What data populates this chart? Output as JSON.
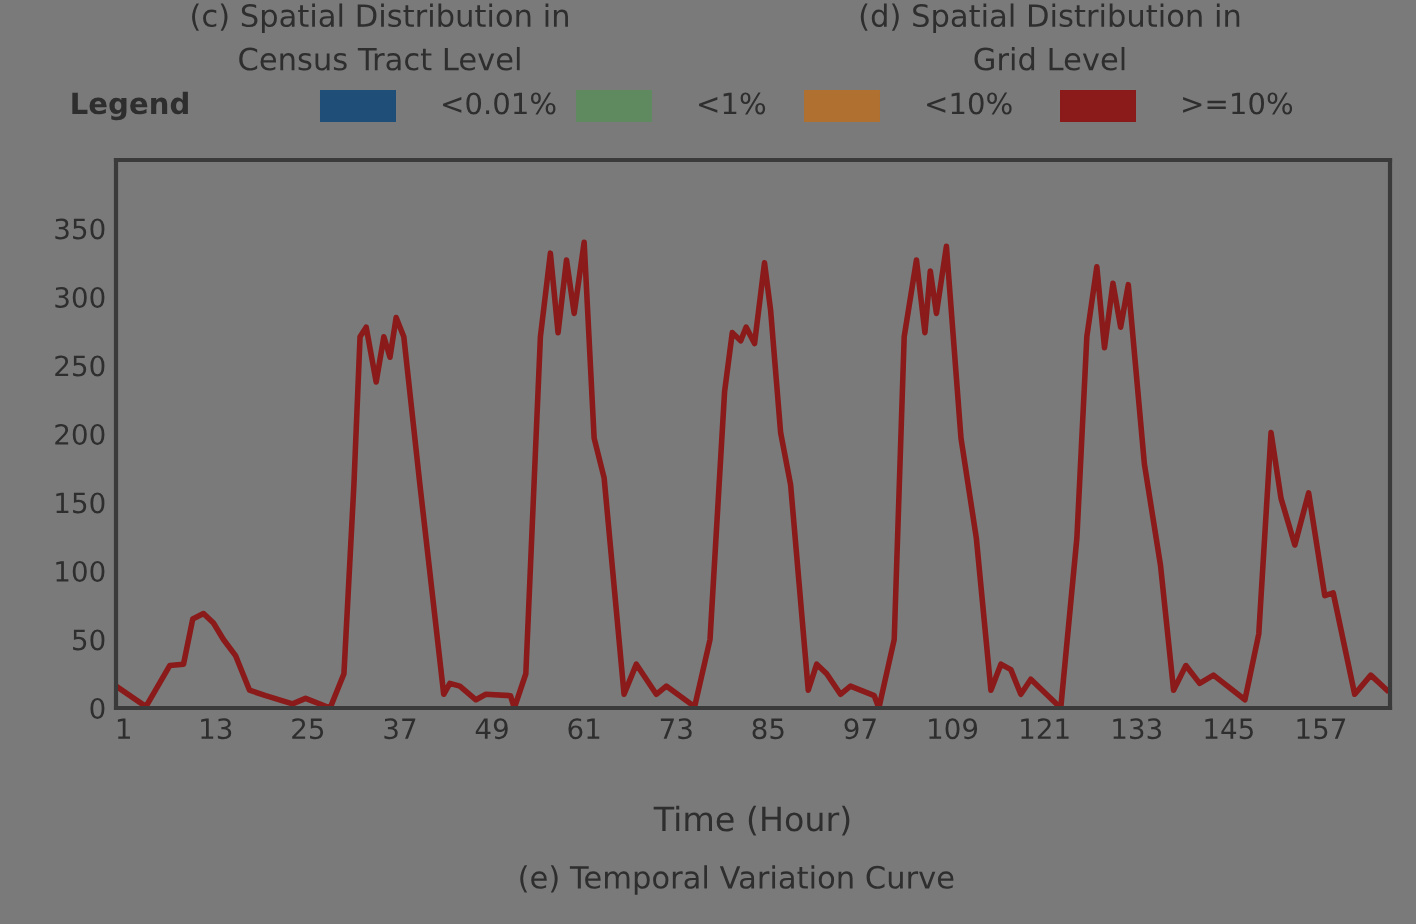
{
  "chart_data": {
    "type": "line",
    "title": "(e) Temporal Variation Curve",
    "xlabel": "Time (Hour)",
    "annotations": [
      "(c) Spatial Distribution in\nCensus Tract Level",
      "(d) Spatial Distribution in\nGrid Level",
      "Legend",
      "<0.01%",
      "<1%",
      "<10%",
      ">=10%"
    ],
    "xlim": [
      0,
      166
    ],
    "xticks": [
      1,
      13,
      25,
      37,
      49,
      61,
      73,
      85,
      97,
      109,
      121,
      133,
      145,
      157
    ],
    "ylim": [
      0,
      400
    ],
    "yticks": [
      0,
      50,
      100,
      150,
      200,
      250,
      300,
      350
    ],
    "grid": false,
    "legend": false,
    "marker": "none",
    "line_style": "solid",
    "series": [
      {
        "color": "#8b1a1a",
        "x": [
          0,
          3.9,
          7,
          8.8,
          10,
          11.4,
          12.7,
          14,
          15.6,
          17.4,
          19.5,
          23,
          24.7,
          27.9,
          29.7,
          31,
          31.8,
          32.6,
          33.9,
          34.9,
          35.7,
          36.5,
          37.5,
          39.6,
          42.7,
          43.5,
          44.8,
          46.9,
          48.2,
          51.4,
          51.9,
          53.4,
          55.3,
          56.6,
          57.6,
          58.7,
          59.7,
          61,
          62.3,
          63.6,
          66.2,
          67.8,
          70.4,
          71.7,
          75.4,
          77.4,
          79.3,
          80.3,
          81.4,
          82.1,
          83.2,
          84.5,
          85.3,
          86.6,
          87.9,
          90.2,
          91.3,
          92.6,
          94.4,
          95.7,
          98.8,
          99.4,
          101.4,
          102.7,
          104.3,
          105.4,
          106.1,
          106.9,
          108.2,
          110.1,
          112.1,
          114,
          115.3,
          116.6,
          117.9,
          119.2,
          123.1,
          125.2,
          126.5,
          127.8,
          128.8,
          129.9,
          130.9,
          131.9,
          134,
          136.1,
          137.8,
          139.4,
          141.2,
          143,
          147.1,
          148.9,
          150.5,
          151.8,
          153.6,
          155.4,
          157.5,
          158.6,
          161.4,
          163.5,
          165.6
        ],
        "values": [
          16,
          1,
          31,
          32,
          65,
          69,
          62,
          50,
          38,
          13,
          9,
          3,
          7,
          0,
          25,
          163,
          271,
          278,
          238,
          271,
          256,
          285,
          271,
          163,
          10,
          18,
          16,
          6,
          10,
          9,
          0,
          25,
          271,
          332,
          274,
          327,
          288,
          340,
          197,
          168,
          10,
          32,
          10,
          16,
          1,
          50,
          231,
          274,
          268,
          278,
          266,
          325,
          290,
          201,
          163,
          13,
          32,
          25,
          10,
          16,
          9,
          0,
          50,
          271,
          327,
          274,
          319,
          288,
          337,
          197,
          124,
          13,
          32,
          28,
          10,
          21,
          0,
          124,
          271,
          322,
          263,
          310,
          278,
          309,
          178,
          104,
          13,
          31,
          18,
          24,
          6,
          54,
          201,
          153,
          119,
          157,
          82,
          84,
          10,
          24,
          13
        ]
      }
    ]
  }
}
